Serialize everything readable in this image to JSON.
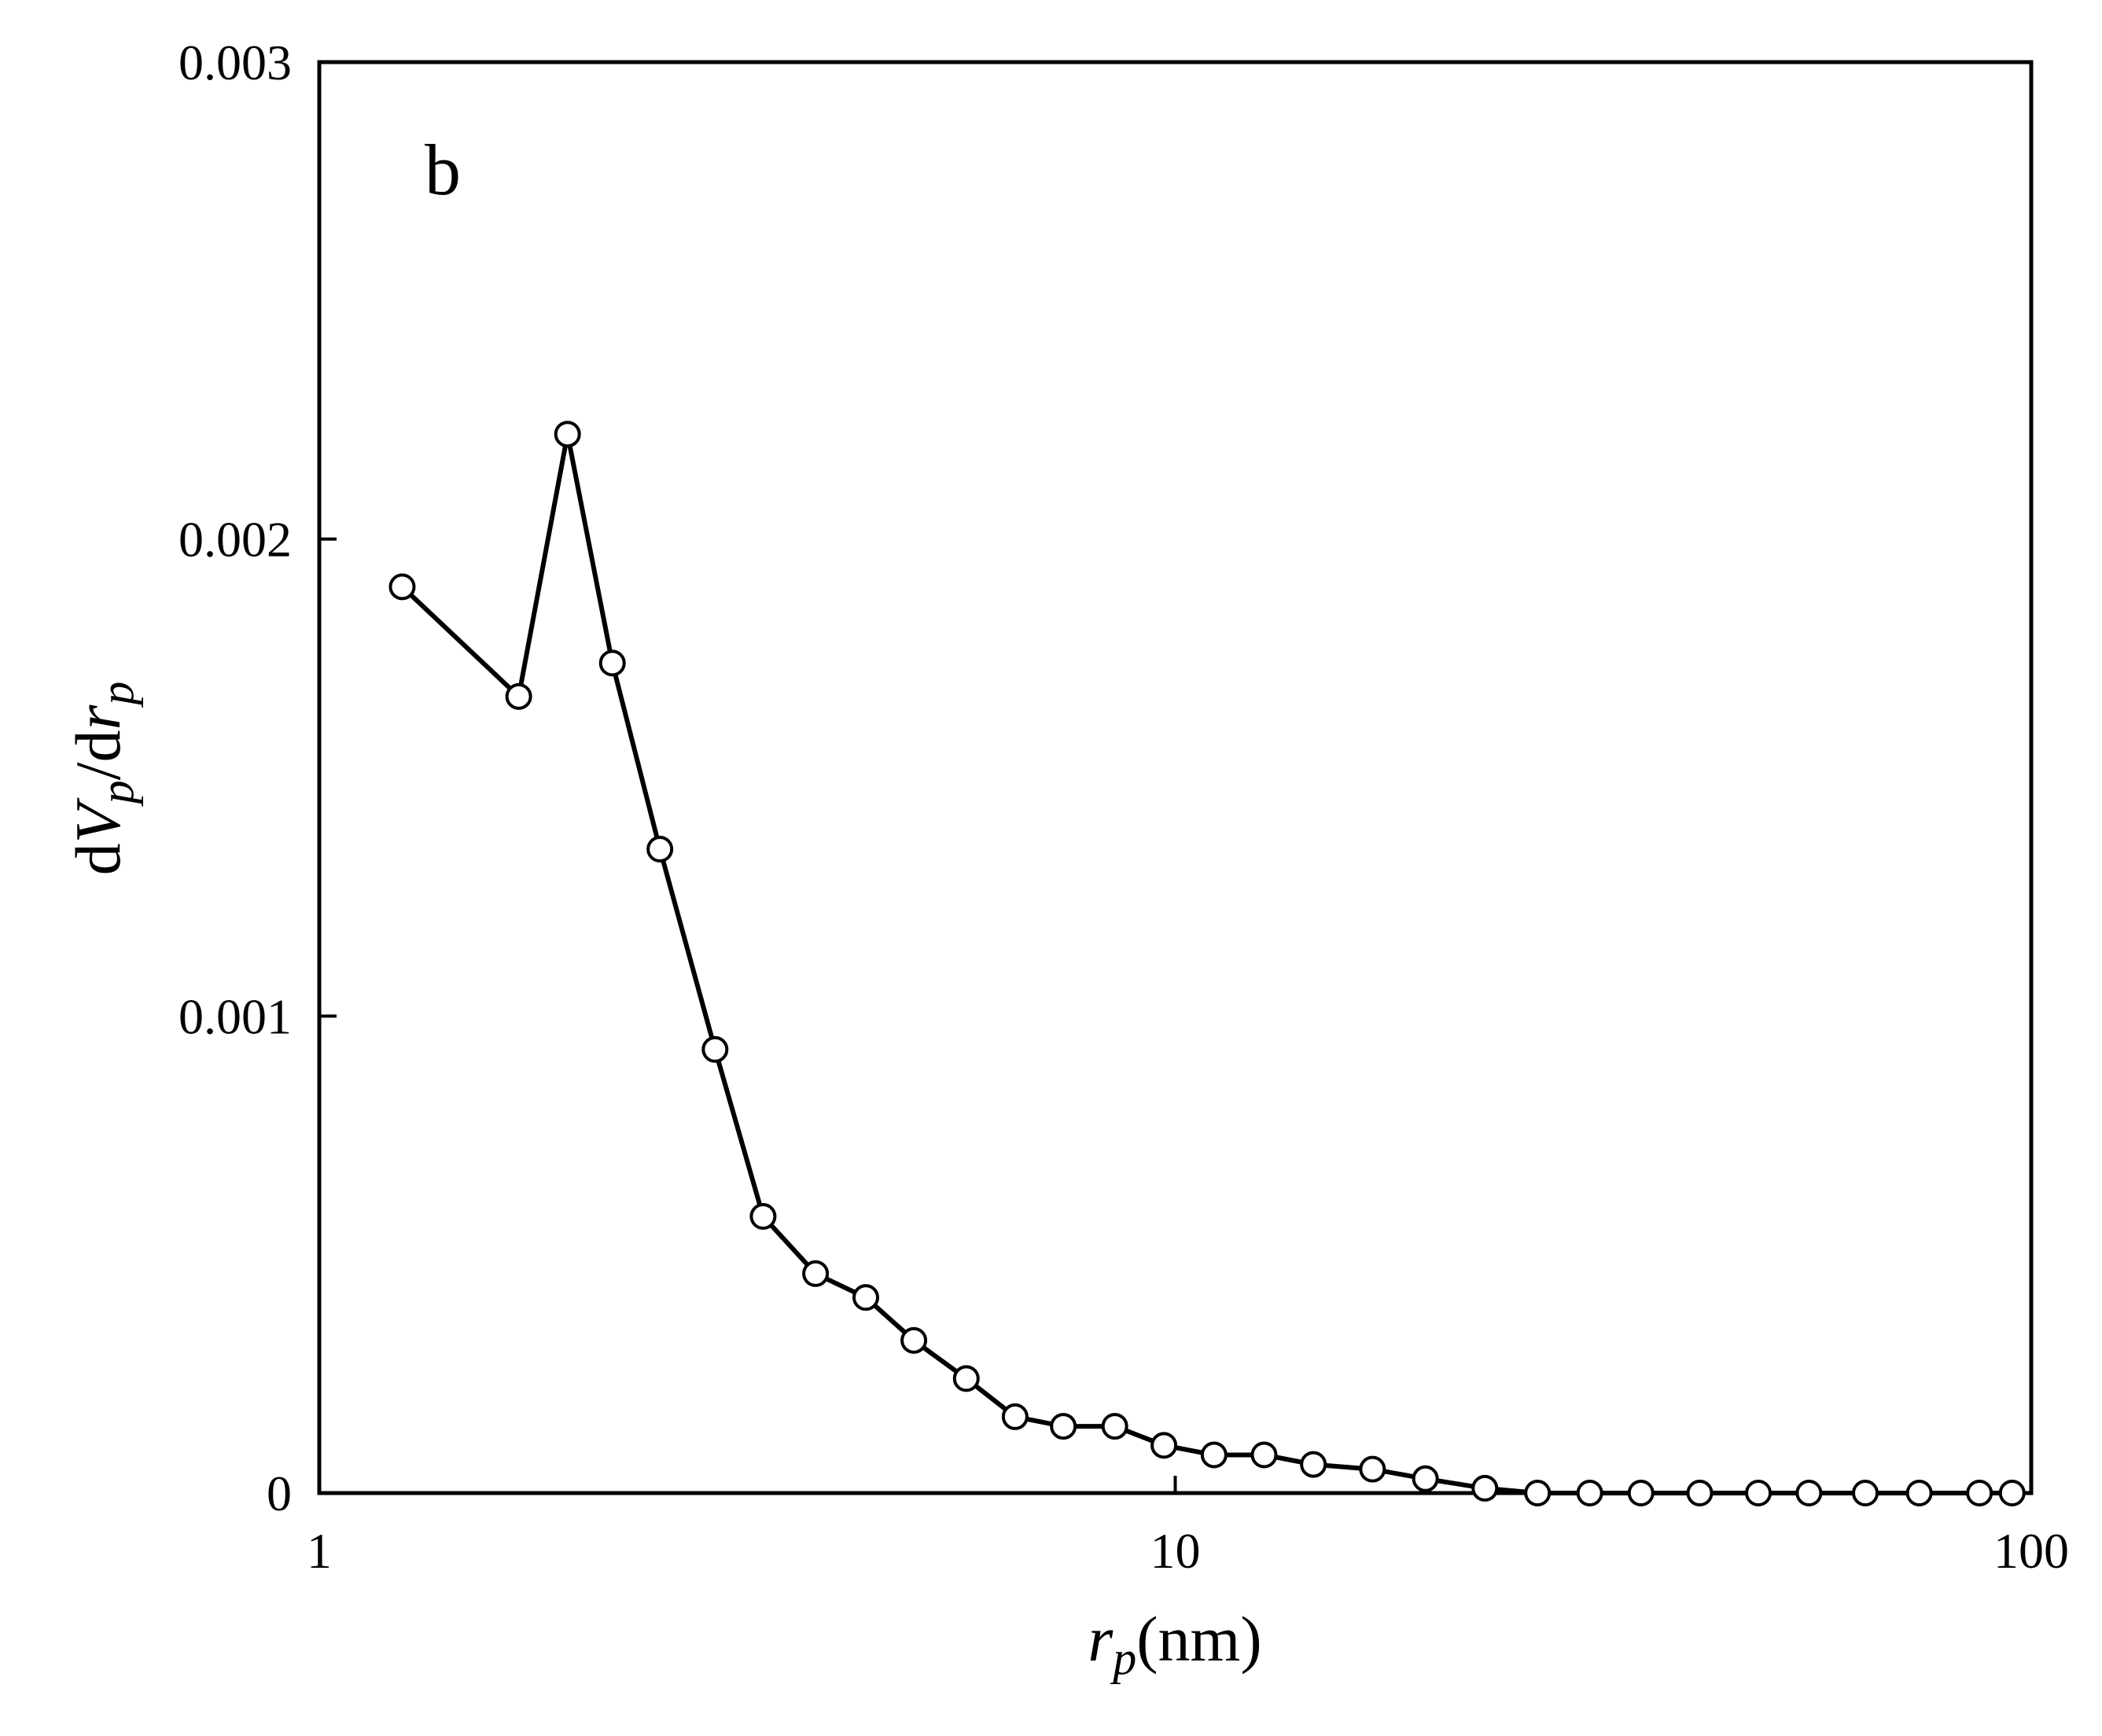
{
  "chart_data": {
    "type": "line",
    "title": "",
    "panel_label": "b",
    "xlabel": {
      "parts": [
        {
          "text": "r",
          "italic": true
        },
        {
          "text": "p",
          "italic": true,
          "sub": true
        },
        {
          "text": "(nm)",
          "italic": false
        }
      ]
    },
    "ylabel": {
      "parts": [
        {
          "text": "d",
          "italic": false
        },
        {
          "text": "V",
          "italic": true
        },
        {
          "text": "p",
          "italic": true,
          "sub": true
        },
        {
          "text": "/d",
          "italic": false
        },
        {
          "text": "r",
          "italic": true
        },
        {
          "text": "p",
          "italic": true,
          "sub": true
        }
      ]
    },
    "x_scale": "log",
    "xlim": [
      1,
      100
    ],
    "ylim": [
      0,
      0.003
    ],
    "x_ticks": [
      1,
      10,
      100
    ],
    "x_tick_labels": [
      "1",
      "10",
      "100"
    ],
    "y_ticks": [
      0,
      0.001,
      0.002,
      0.003
    ],
    "y_tick_labels": [
      "0",
      "0.001",
      "0.002",
      "0.003"
    ],
    "grid": false,
    "legend": "none",
    "series": [
      {
        "marker": "open-circle",
        "color": "#000000",
        "x": [
          1.25,
          1.71,
          1.95,
          2.2,
          2.5,
          2.9,
          3.3,
          3.8,
          4.35,
          4.95,
          5.7,
          6.5,
          7.4,
          8.5,
          9.7,
          11.1,
          12.7,
          14.5,
          17.0,
          19.6,
          23.0,
          26.5,
          30.5,
          35.0,
          41.0,
          48.0,
          55.0,
          64.0,
          74.0,
          87.0,
          95.0
        ],
        "y": [
          0.0019,
          0.00167,
          0.00222,
          0.00174,
          0.00135,
          0.00093,
          0.00058,
          0.00046,
          0.00041,
          0.00032,
          0.00024,
          0.00016,
          0.00014,
          0.00014,
          0.0001,
          8e-05,
          8e-05,
          6e-05,
          5e-05,
          3e-05,
          1e-05,
          0.0,
          0.0,
          0.0,
          0.0,
          0.0,
          0.0,
          0.0,
          0.0,
          0.0,
          0.0
        ]
      }
    ]
  }
}
